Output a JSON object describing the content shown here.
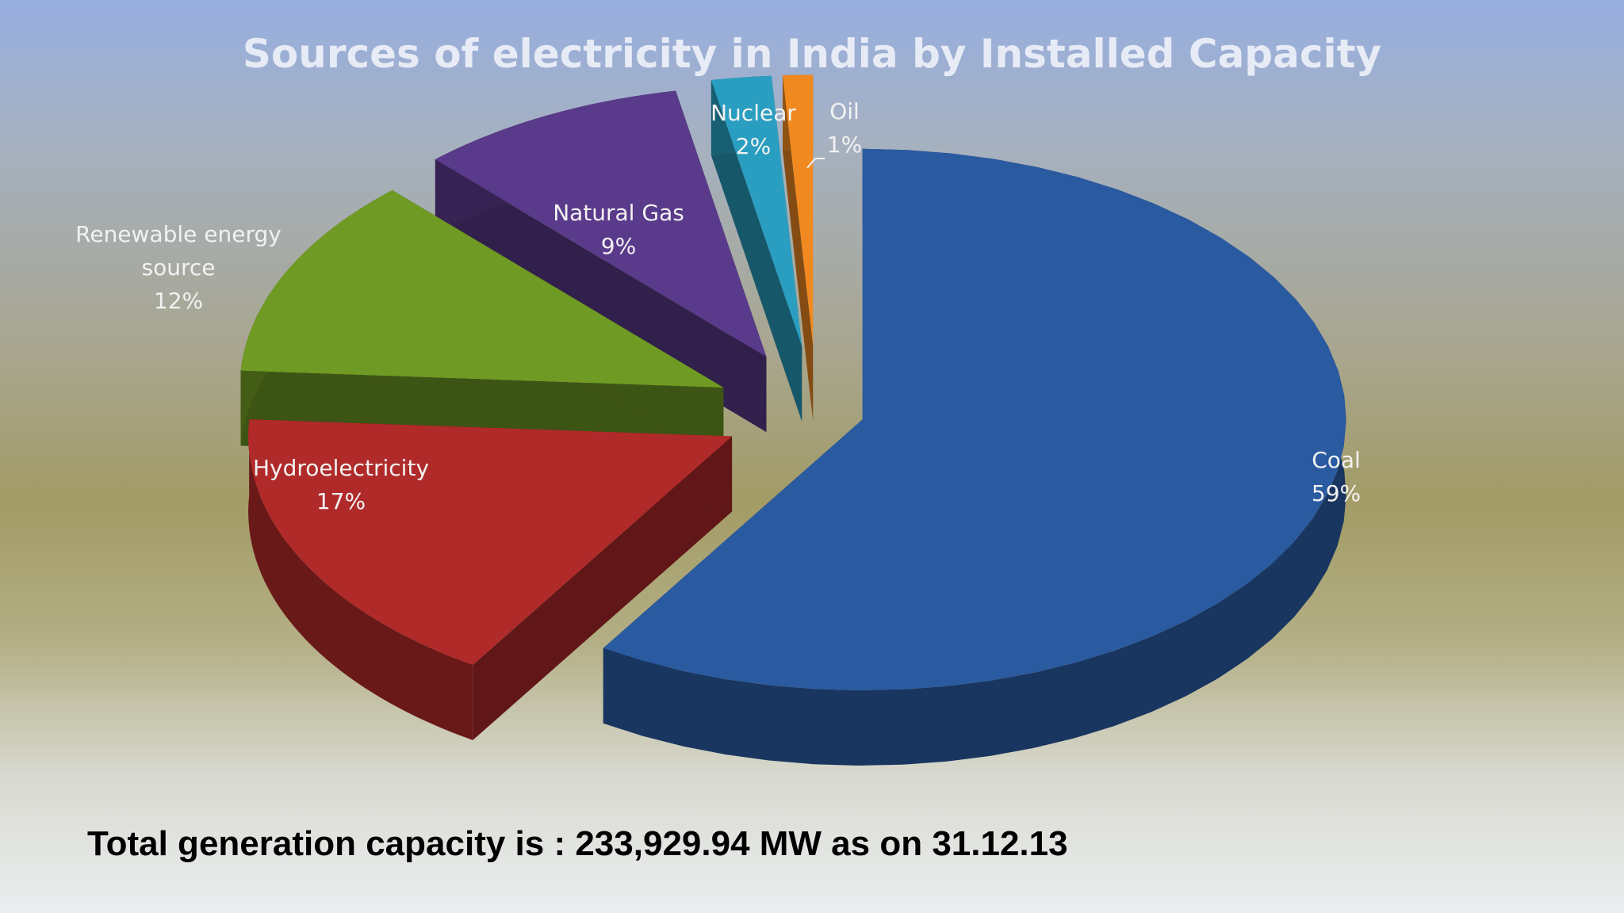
{
  "chart_data": {
    "type": "pie",
    "title": "Sources of electricity in India by Installed Capacity",
    "slices": [
      {
        "label": "Coal",
        "value_label": "59%",
        "value": 59,
        "color": "#2a5aa0"
      },
      {
        "label": "Hydroelectricity",
        "value_label": "17%",
        "value": 17,
        "color": "#b02a2a"
      },
      {
        "label": "Renewable energy source",
        "label_lines": [
          "Renewable energy",
          "source"
        ],
        "value_label": "12%",
        "value": 12,
        "color": "#6f9a24"
      },
      {
        "label": "Natural Gas",
        "value_label": "9%",
        "value": 9,
        "color": "#5a3a8a"
      },
      {
        "label": "Nuclear",
        "value_label": "2%",
        "value": 2,
        "color": "#2a9ec0"
      },
      {
        "label": "Oil",
        "value_label": "1%",
        "value": 1,
        "color": "#f08a20"
      }
    ]
  },
  "footer": {
    "note": "Total generation capacity is : 233,929.94 MW as on 31.12.13"
  }
}
